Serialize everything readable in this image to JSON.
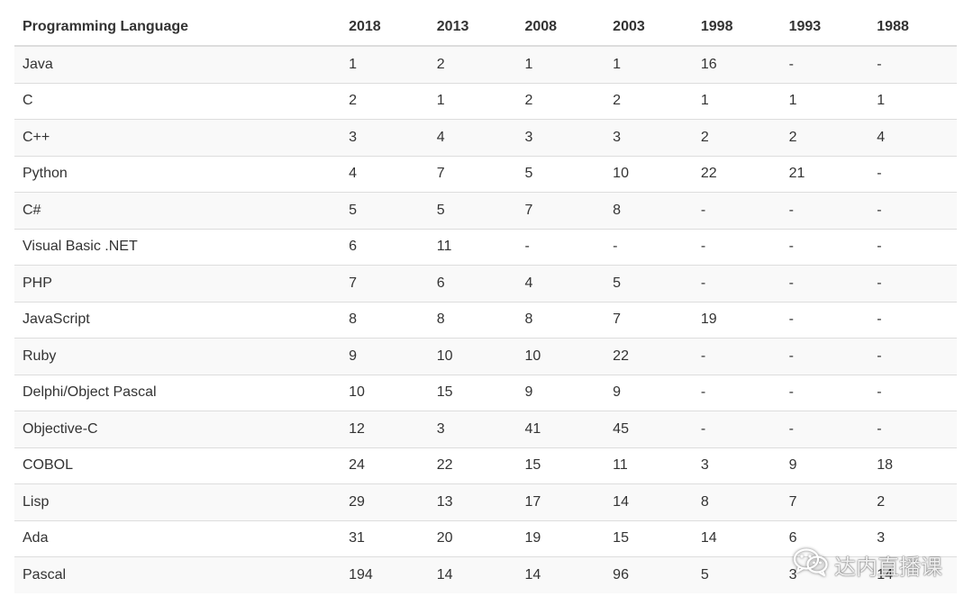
{
  "table": {
    "headers": [
      "Programming Language",
      "2018",
      "2013",
      "2008",
      "2003",
      "1998",
      "1993",
      "1988"
    ],
    "rows": [
      [
        "Java",
        "1",
        "2",
        "1",
        "1",
        "16",
        "-",
        "-"
      ],
      [
        "C",
        "2",
        "1",
        "2",
        "2",
        "1",
        "1",
        "1"
      ],
      [
        "C++",
        "3",
        "4",
        "3",
        "3",
        "2",
        "2",
        "4"
      ],
      [
        "Python",
        "4",
        "7",
        "5",
        "10",
        "22",
        "21",
        "-"
      ],
      [
        "C#",
        "5",
        "5",
        "7",
        "8",
        "-",
        "-",
        "-"
      ],
      [
        "Visual Basic .NET",
        "6",
        "11",
        "-",
        "-",
        "-",
        "-",
        "-"
      ],
      [
        "PHP",
        "7",
        "6",
        "4",
        "5",
        "-",
        "-",
        "-"
      ],
      [
        "JavaScript",
        "8",
        "8",
        "8",
        "7",
        "19",
        "-",
        "-"
      ],
      [
        "Ruby",
        "9",
        "10",
        "10",
        "22",
        "-",
        "-",
        "-"
      ],
      [
        "Delphi/Object Pascal",
        "10",
        "15",
        "9",
        "9",
        "-",
        "-",
        "-"
      ],
      [
        "Objective-C",
        "12",
        "3",
        "41",
        "45",
        "-",
        "-",
        "-"
      ],
      [
        "COBOL",
        "24",
        "22",
        "15",
        "11",
        "3",
        "9",
        "18"
      ],
      [
        "Lisp",
        "29",
        "13",
        "17",
        "14",
        "8",
        "7",
        "2"
      ],
      [
        "Ada",
        "31",
        "20",
        "19",
        "15",
        "14",
        "6",
        "3"
      ],
      [
        "Pascal",
        "194",
        "14",
        "14",
        "96",
        "5",
        "3",
        "14"
      ]
    ]
  },
  "watermark": {
    "icon": "wechat-icon",
    "text": "达内直播课"
  }
}
